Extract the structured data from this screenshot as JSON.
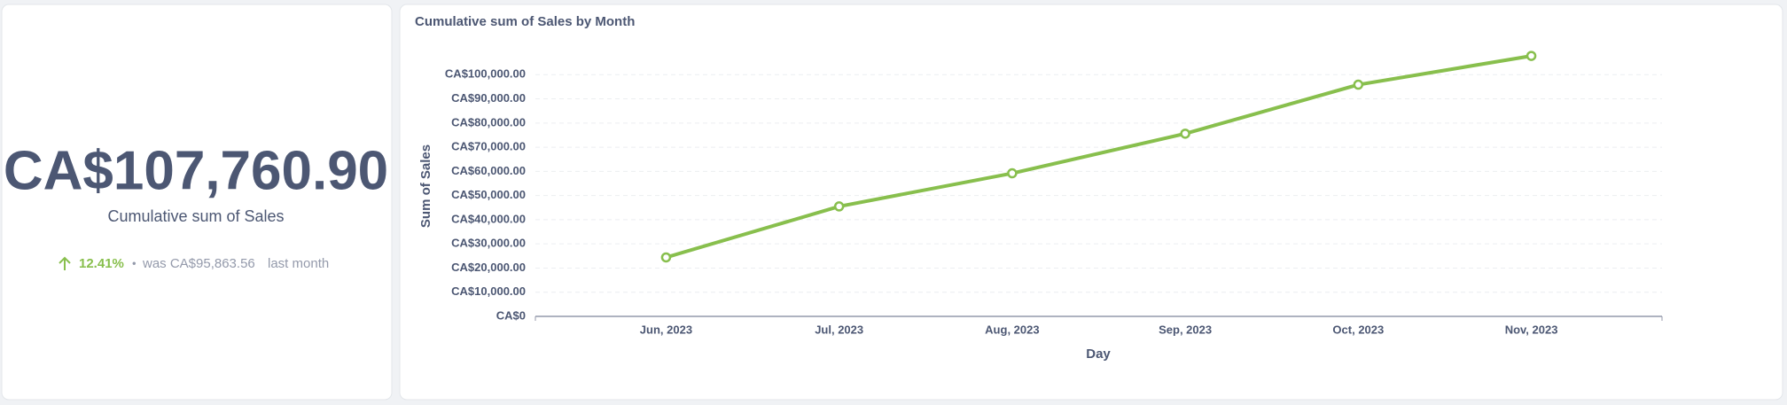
{
  "kpi": {
    "value": "CA$107,760.90",
    "label": "Cumulative sum of Sales",
    "change": "12.41%",
    "separator": "•",
    "comparison": "was CA$95,863.56",
    "period": "last month"
  },
  "chart_data": {
    "type": "line",
    "title": "Cumulative sum of Sales by Month",
    "x_label": "Day",
    "y_label": "Sum of Sales",
    "categories": [
      "Jun, 2023",
      "Jul, 2023",
      "Aug, 2023",
      "Sep, 2023",
      "Oct, 2023",
      "Nov, 2023"
    ],
    "series": [
      {
        "name": "Sum of Sales",
        "color": "#88bf4d",
        "values": [
          24400,
          45500,
          59200,
          75600,
          95863.56,
          107760.9
        ]
      }
    ],
    "ylim": [
      0,
      110000
    ],
    "yticks": [
      {
        "value": 0,
        "label": "CA$0"
      },
      {
        "value": 10000,
        "label": "CA$10,000.00"
      },
      {
        "value": 20000,
        "label": "CA$20,000.00"
      },
      {
        "value": 30000,
        "label": "CA$30,000.00"
      },
      {
        "value": 40000,
        "label": "CA$40,000.00"
      },
      {
        "value": 50000,
        "label": "CA$50,000.00"
      },
      {
        "value": 60000,
        "label": "CA$60,000.00"
      },
      {
        "value": 70000,
        "label": "CA$70,000.00"
      },
      {
        "value": 80000,
        "label": "CA$80,000.00"
      },
      {
        "value": 90000,
        "label": "CA$90,000.00"
      },
      {
        "value": 100000,
        "label": "CA$100,000.00"
      }
    ],
    "grid": true
  }
}
